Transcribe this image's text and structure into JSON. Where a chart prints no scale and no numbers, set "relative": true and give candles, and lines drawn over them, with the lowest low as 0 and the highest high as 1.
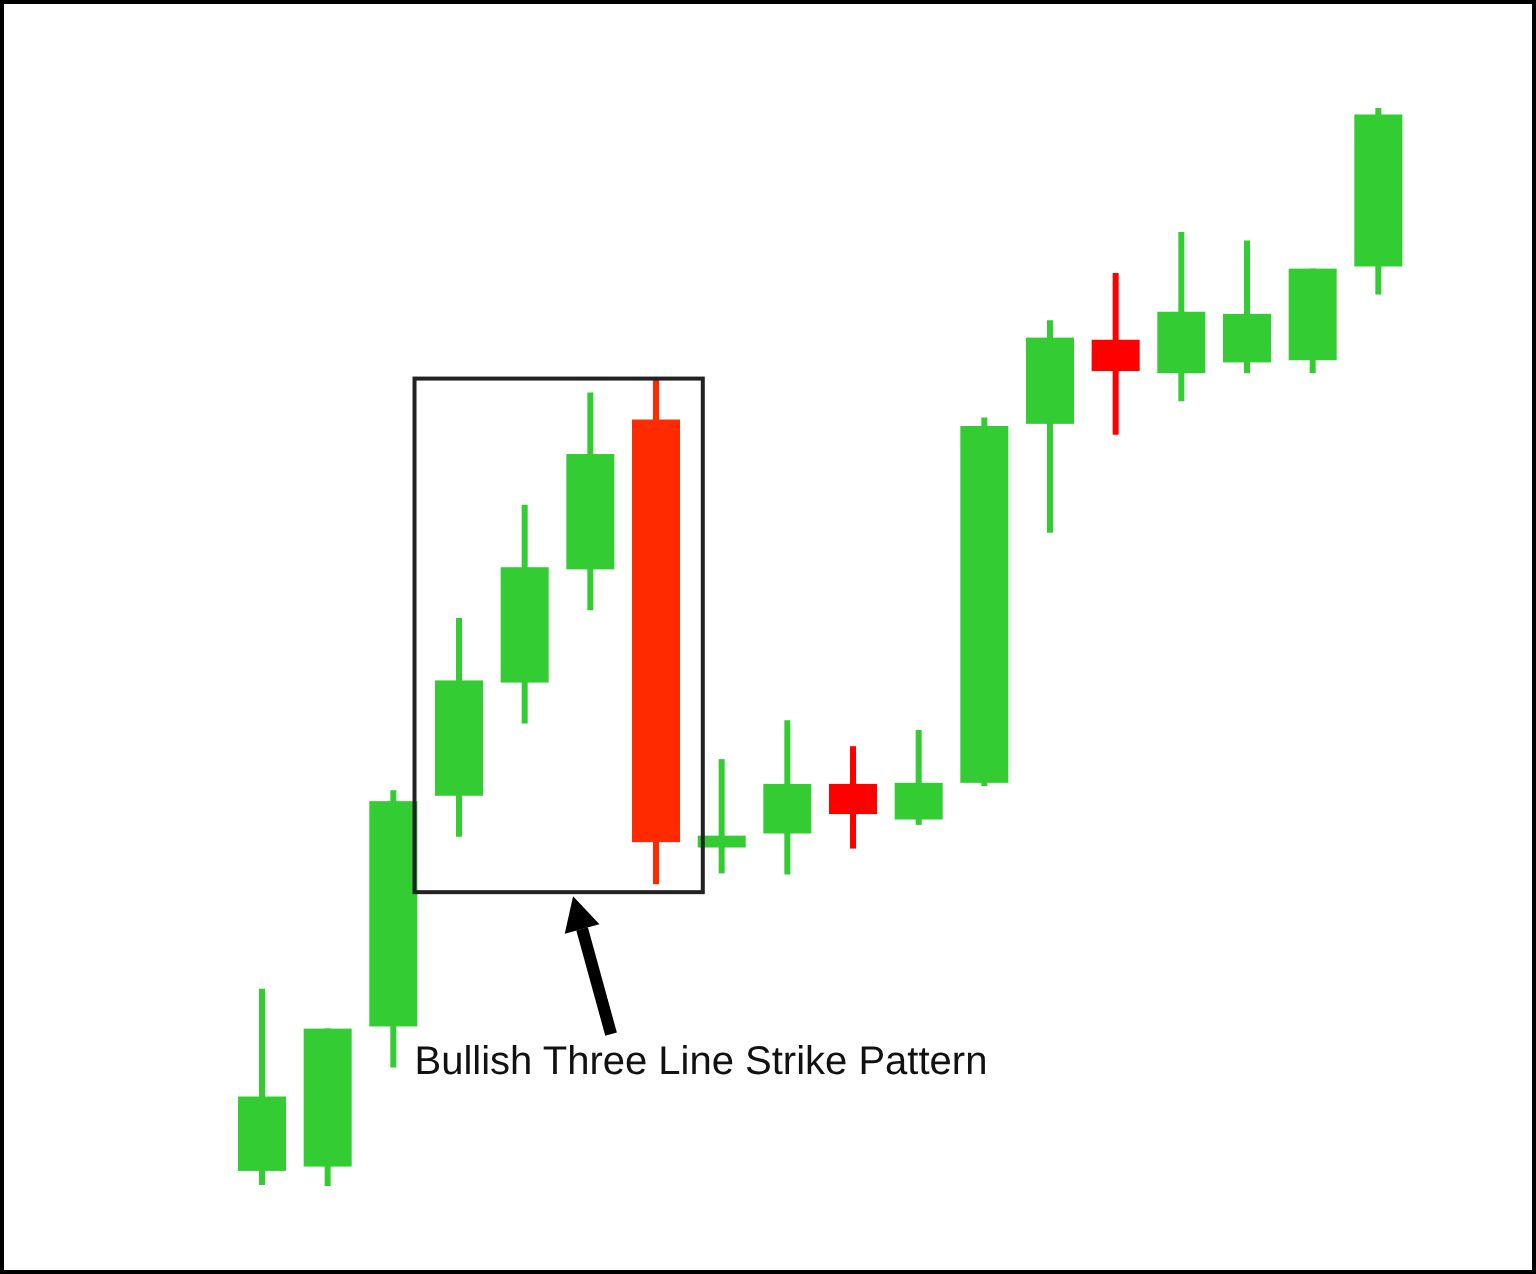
{
  "chart_data": {
    "type": "candlestick",
    "relative": true,
    "categories": [
      null,
      null,
      null,
      null,
      null,
      null,
      null,
      null,
      null,
      null,
      null,
      null,
      null,
      null,
      null,
      null,
      null,
      null
    ],
    "ohlc": [
      [
        0.014,
        0.183,
        0.001,
        0.083
      ],
      [
        0.018,
        0.146,
        0,
        0.146
      ],
      [
        0.148,
        0.367,
        0.11,
        0.357
      ],
      [
        0.362,
        0.527,
        0.324,
        0.469
      ],
      [
        0.467,
        0.632,
        0.429,
        0.574
      ],
      [
        0.572,
        0.736,
        0.534,
        0.679
      ],
      [
        0.711,
        0.749,
        0.28,
        0.319
      ],
      [
        0.314,
        0.396,
        0.29,
        0.325
      ],
      [
        0.327,
        0.432,
        0.289,
        0.373
      ],
      [
        0.373,
        0.408,
        0.313,
        0.345
      ],
      [
        0.34,
        0.423,
        0.335,
        0.374
      ],
      [
        0.374,
        0.713,
        0.371,
        0.705
      ],
      [
        0.707,
        0.803,
        0.606,
        0.787
      ],
      [
        0.785,
        0.847,
        0.697,
        0.756
      ],
      [
        0.754,
        0.885,
        0.728,
        0.811
      ],
      [
        0.764,
        0.877,
        0.754,
        0.809
      ],
      [
        0.766,
        0.851,
        0.754,
        0.851
      ],
      [
        0.853,
        1,
        0.827,
        0.994
      ]
    ],
    "colors": [
      "#33cc33",
      "#33cc33",
      "#33cc33",
      "#33cc33",
      "#33cc33",
      "#33cc33",
      "#ff2a00",
      "#33cc33",
      "#33cc33",
      "#ff0000",
      "#33cc33",
      "#33cc33",
      "#33cc33",
      "#ff0000",
      "#33cc33",
      "#33cc33",
      "#33cc33",
      "#33cc33"
    ],
    "annotations": [
      "Bullish Three Line Strike Pattern"
    ]
  }
}
